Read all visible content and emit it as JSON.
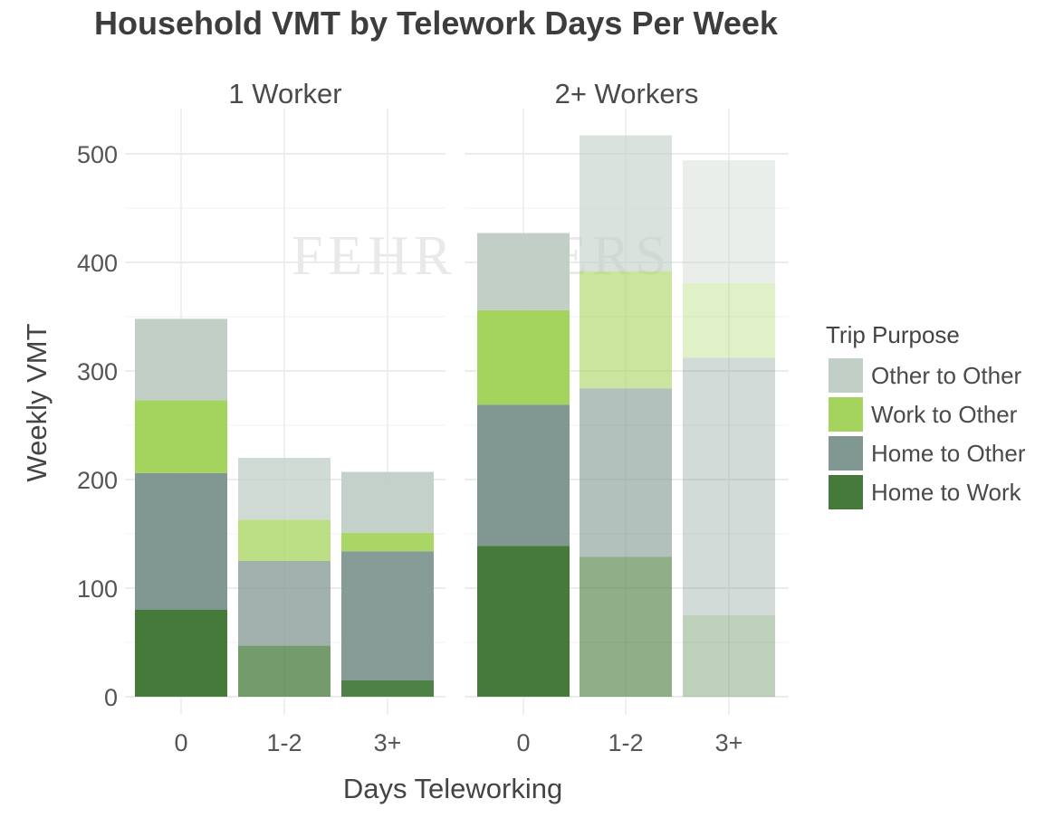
{
  "chart_data": {
    "type": "bar",
    "stacked": true,
    "title": "Household VMT by Telework Days Per Week",
    "xlabel": "Days Teleworking",
    "ylabel": "Weekly VMT",
    "ylim": [
      0,
      540
    ],
    "yticks": [
      0,
      100,
      200,
      300,
      400,
      500
    ],
    "grid": true,
    "legend": {
      "title": "Trip Purpose",
      "position": "right"
    },
    "categories": [
      "0",
      "1-2",
      "3+"
    ],
    "facets": [
      "1 Worker",
      "2+ Workers"
    ],
    "series": [
      {
        "name": "Home to Work",
        "color": "#457a3b",
        "facet_values": {
          "1 Worker": [
            80,
            47,
            15
          ],
          "2+ Workers": [
            139,
            129,
            75
          ]
        }
      },
      {
        "name": "Home to Other",
        "color": "#819791",
        "facet_values": {
          "1 Worker": [
            126,
            78,
            119
          ],
          "2+ Workers": [
            130,
            155,
            237
          ]
        }
      },
      {
        "name": "Work to Other",
        "color": "#a5d45e",
        "facet_values": {
          "1 Worker": [
            67,
            38,
            17
          ],
          "2+ Workers": [
            87,
            108,
            69
          ]
        }
      },
      {
        "name": "Other to Other",
        "color": "#c1cfc7",
        "facet_values": {
          "1 Worker": [
            75,
            57,
            56
          ],
          "2+ Workers": [
            71,
            125,
            113
          ]
        }
      }
    ],
    "bar_opacity": {
      "1 Worker": [
        1.0,
        0.75,
        0.95
      ],
      "2+ Workers": [
        1.0,
        0.6,
        0.35
      ]
    },
    "legend_order": [
      "Other to Other",
      "Work to Other",
      "Home to Other",
      "Home to Work"
    ],
    "watermark": "FEHR PEERS"
  }
}
